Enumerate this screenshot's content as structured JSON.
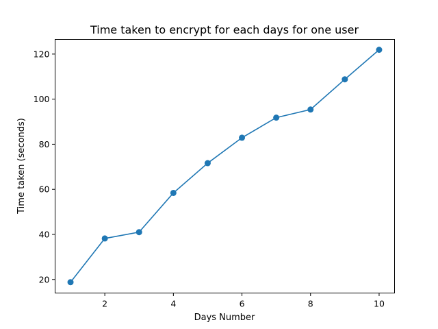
{
  "chart_data": {
    "type": "line",
    "title": "Time taken to encrypt for each days for one user",
    "xlabel": "Days Number",
    "ylabel": "Time taken (seconds)",
    "xlim": [
      0.55,
      10.45
    ],
    "ylim": [
      14,
      126.5
    ],
    "xticks": [
      2,
      4,
      6,
      8,
      10
    ],
    "yticks": [
      20,
      40,
      60,
      80,
      100,
      120
    ],
    "grid": false,
    "series": [
      {
        "color": "#1f77b4",
        "marker": "circle",
        "x": [
          1,
          2,
          3,
          4,
          5,
          6,
          7,
          8,
          9,
          10
        ],
        "y": [
          18.8,
          38.2,
          41.0,
          58.4,
          71.6,
          82.9,
          91.8,
          95.4,
          108.8,
          121.9
        ]
      }
    ]
  }
}
